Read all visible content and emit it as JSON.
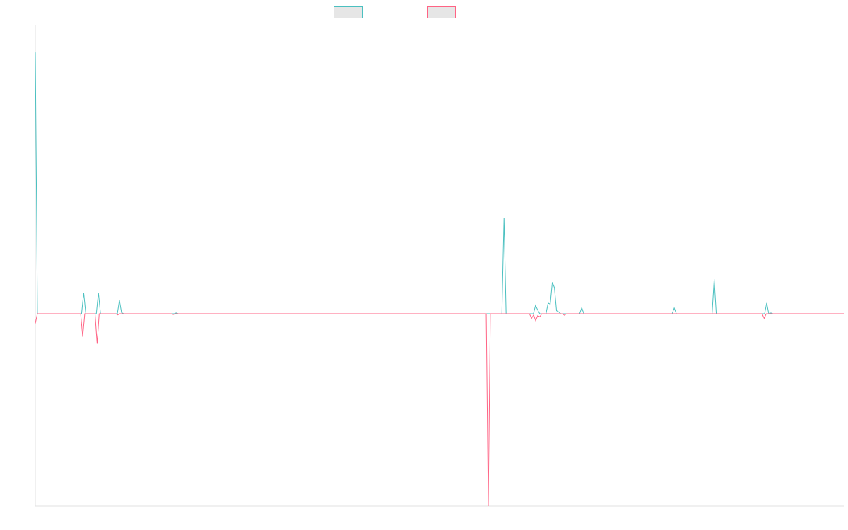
{
  "chart_data": {
    "type": "line",
    "title": "",
    "xlabel": "",
    "ylabel": "",
    "grid": false,
    "legend_position": "top-center",
    "ylim": [
      -0.5,
      0.75
    ],
    "baseline": 0,
    "series": [
      {
        "name": "",
        "color": "#4bc0c0",
        "legend_fill": "#e6e6e6",
        "values": [
          0.68,
          0,
          0,
          0,
          0,
          0,
          0,
          0,
          0,
          0,
          0,
          0,
          0,
          0,
          0,
          0,
          0,
          0,
          0,
          0,
          0,
          0,
          0,
          0.055,
          0,
          0,
          0,
          0,
          0,
          0,
          0.055,
          0,
          0,
          0,
          0,
          0,
          0,
          0,
          0,
          0,
          0.035,
          0.003,
          0,
          0,
          0,
          0,
          0,
          0,
          0,
          0,
          0,
          0,
          0,
          0,
          0,
          0,
          0,
          0,
          0,
          0,
          0,
          0,
          0,
          0,
          0,
          0,
          0,
          0.002,
          0,
          0,
          0,
          0,
          0,
          0,
          0,
          0,
          0,
          0,
          0,
          0,
          0,
          0,
          0,
          0,
          0,
          0,
          0,
          0,
          0,
          0,
          0,
          0,
          0,
          0,
          0,
          0,
          0,
          0,
          0,
          0,
          0,
          0,
          0,
          0,
          0,
          0,
          0,
          0,
          0,
          0,
          0,
          0,
          0,
          0,
          0,
          0,
          0,
          0,
          0,
          0,
          0,
          0,
          0,
          0,
          0,
          0,
          0,
          0,
          0,
          0,
          0,
          0,
          0,
          0,
          0,
          0,
          0,
          0,
          0,
          0,
          0,
          0,
          0,
          0,
          0,
          0,
          0,
          0,
          0,
          0,
          0,
          0,
          0,
          0,
          0,
          0,
          0,
          0,
          0,
          0,
          0,
          0,
          0,
          0,
          0,
          0,
          0,
          0,
          0,
          0,
          0,
          0,
          0,
          0,
          0,
          0,
          0,
          0,
          0,
          0,
          0,
          0,
          0,
          0,
          0,
          0,
          0,
          0,
          0,
          0,
          0,
          0,
          0,
          0,
          0,
          0,
          0,
          0,
          0,
          0,
          0,
          0,
          0,
          0,
          0,
          0,
          0,
          0,
          0,
          0,
          0,
          0,
          0,
          0,
          0,
          0,
          0,
          0,
          0,
          0,
          0,
          0,
          0,
          0.25,
          0,
          0,
          0,
          0,
          0,
          0,
          0,
          0,
          0,
          0,
          0,
          0,
          0,
          0,
          0.022,
          0.01,
          0,
          0,
          0,
          0,
          0.028,
          0.025,
          0.082,
          0.068,
          0.008,
          0.005,
          0,
          0,
          0,
          0,
          0,
          0,
          0,
          0,
          0,
          0,
          0.016,
          0,
          0,
          0,
          0,
          0,
          0,
          0,
          0,
          0,
          0,
          0,
          0,
          0,
          0,
          0,
          0,
          0,
          0,
          0,
          0,
          0,
          0,
          0,
          0,
          0,
          0,
          0,
          0,
          0,
          0,
          0,
          0,
          0,
          0,
          0,
          0,
          0,
          0,
          0,
          0,
          0,
          0,
          0,
          0.015,
          0,
          0,
          0,
          0,
          0,
          0,
          0,
          0,
          0,
          0,
          0,
          0,
          0,
          0,
          0,
          0,
          0,
          0,
          0.09,
          0,
          0,
          0,
          0,
          0,
          0,
          0,
          0,
          0,
          0,
          0,
          0,
          0,
          0,
          0,
          0,
          0,
          0,
          0,
          0,
          0,
          0,
          0,
          0,
          0.028,
          0,
          0.002,
          0,
          0,
          0,
          0,
          0,
          0,
          0,
          0,
          0,
          0,
          0,
          0,
          0,
          0,
          0,
          0,
          0,
          0,
          0,
          0,
          0,
          0,
          0,
          0,
          0,
          0,
          0,
          0,
          0,
          0,
          0,
          0,
          0,
          0,
          0
        ]
      },
      {
        "name": "",
        "color": "#ff6384",
        "legend_fill": "#e6e6e6",
        "values": [
          -0.025,
          0,
          0,
          0,
          0,
          0,
          0,
          0,
          0,
          0,
          0,
          0,
          0,
          0,
          0,
          0,
          0,
          0,
          0,
          0,
          0,
          0,
          0,
          -0.06,
          0,
          0,
          0,
          0,
          0,
          0,
          -0.078,
          0,
          0,
          0,
          0,
          0,
          0,
          0,
          0,
          0,
          -0.003,
          0,
          0,
          0,
          0,
          0,
          0,
          0,
          0,
          0,
          0,
          0,
          0,
          0,
          0,
          0,
          0,
          0,
          0,
          0,
          0,
          0,
          0,
          0,
          0,
          0,
          0,
          -0.002,
          0,
          0,
          0,
          0,
          0,
          0,
          0,
          0,
          0,
          0,
          0,
          0,
          0,
          0,
          0,
          0,
          0,
          0,
          0,
          0,
          0,
          0,
          0,
          0,
          0,
          0,
          0,
          0,
          0,
          0,
          0,
          0,
          0,
          0,
          0,
          0,
          0,
          0,
          0,
          0,
          0,
          0,
          0,
          0,
          0,
          0,
          0,
          0,
          0,
          0,
          0,
          0,
          0,
          0,
          0,
          0,
          0,
          0,
          0,
          0,
          0,
          0,
          0,
          0,
          0,
          0,
          0,
          0,
          0,
          0,
          0,
          0,
          0,
          0,
          0,
          0,
          0,
          0,
          0,
          0,
          0,
          0,
          0,
          0,
          0,
          0,
          0,
          0,
          0,
          0,
          0,
          0,
          0,
          0,
          0,
          0,
          0,
          0,
          0,
          0,
          0,
          0,
          0,
          0,
          0,
          0,
          0,
          0,
          0,
          0,
          0,
          0,
          0,
          0,
          0,
          0,
          0,
          0,
          0,
          0,
          0,
          0,
          0,
          0,
          0,
          0,
          0,
          0,
          0,
          0,
          0,
          0,
          0,
          0,
          0,
          0,
          0,
          0,
          0,
          0,
          0,
          0,
          0,
          0,
          0,
          0,
          0,
          0,
          0,
          0,
          0,
          0,
          -0.5,
          0,
          0,
          0,
          0,
          0,
          0,
          0,
          0,
          0,
          0,
          0,
          0,
          0,
          0,
          0,
          0,
          0,
          0,
          0,
          0,
          -0.012,
          -0.003,
          -0.018,
          -0.005,
          -0.008,
          0,
          0,
          0,
          0,
          0,
          0,
          0,
          0,
          0,
          0,
          0,
          -0.004,
          0,
          0,
          0,
          0,
          0,
          0,
          0,
          0,
          0,
          0,
          0,
          0,
          0,
          0,
          0,
          0,
          0,
          0,
          0,
          0,
          0,
          0,
          0,
          0,
          0,
          0,
          0,
          0,
          0,
          0,
          0,
          0,
          0,
          0,
          0,
          0,
          0,
          0,
          0,
          0,
          0,
          0,
          0,
          0,
          0,
          0,
          0,
          0,
          0,
          0,
          0,
          0,
          0,
          0,
          0,
          0,
          0,
          0,
          0,
          0,
          0,
          0,
          0,
          0,
          0,
          0,
          0,
          0,
          0,
          0,
          0,
          0,
          0,
          0,
          0,
          0,
          0,
          0,
          0,
          0,
          0,
          0,
          0,
          0,
          0,
          0,
          0,
          0,
          0,
          0,
          0,
          0,
          0,
          0,
          0,
          0,
          -0.012,
          0,
          0,
          0,
          0,
          0,
          0,
          0,
          0,
          0,
          0,
          0,
          0,
          0,
          0,
          0,
          0,
          0,
          0,
          0,
          0,
          0,
          0,
          0,
          0,
          0,
          0,
          0,
          0,
          0,
          0,
          0,
          0,
          0,
          0,
          0,
          0,
          0,
          0,
          0
        ]
      }
    ]
  }
}
